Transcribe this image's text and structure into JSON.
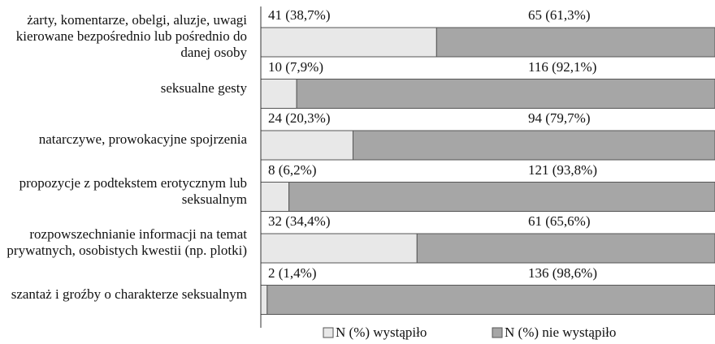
{
  "chart_data": {
    "type": "stacked_barh",
    "categories": [
      "żarty, komentarze, obelgi, aluzje, uwagi kierowane bezpośrednio lub pośrednio do danej osoby",
      "seksualne gesty",
      "natarczywe, prowokacyjne spojrzenia",
      "propozycje z podtekstem erotycznym lub seksualnym",
      "rozpowszechnianie informacji na temat prywatnych, osobistych kwestii (np. plotki)",
      "szantaż i groźby o charakterze seksualnym"
    ],
    "series": [
      {
        "name": "N (%) wystąpiło",
        "color": "#e8e8e8",
        "values": [
          38.7,
          7.9,
          20.3,
          6.2,
          34.4,
          1.4
        ],
        "value_labels": [
          "41 (38,7%)",
          "10 (7,9%)",
          "24  (20,3%)",
          "8 (6,2%)",
          "32 (34,4%)",
          "2 (1,4%)"
        ]
      },
      {
        "name": "N (%) nie wystąpiło",
        "color": "#a6a6a6",
        "values": [
          61.3,
          92.1,
          79.7,
          93.8,
          65.6,
          98.6
        ],
        "value_labels": [
          "65 (61,3%)",
          "116 (92,1%)",
          "94 (79,7%)",
          "121 (93,8%)",
          "61 (65,6%)",
          "136 (98,6%)"
        ]
      }
    ],
    "xlim": [
      0,
      100
    ],
    "legend": "bottom"
  }
}
